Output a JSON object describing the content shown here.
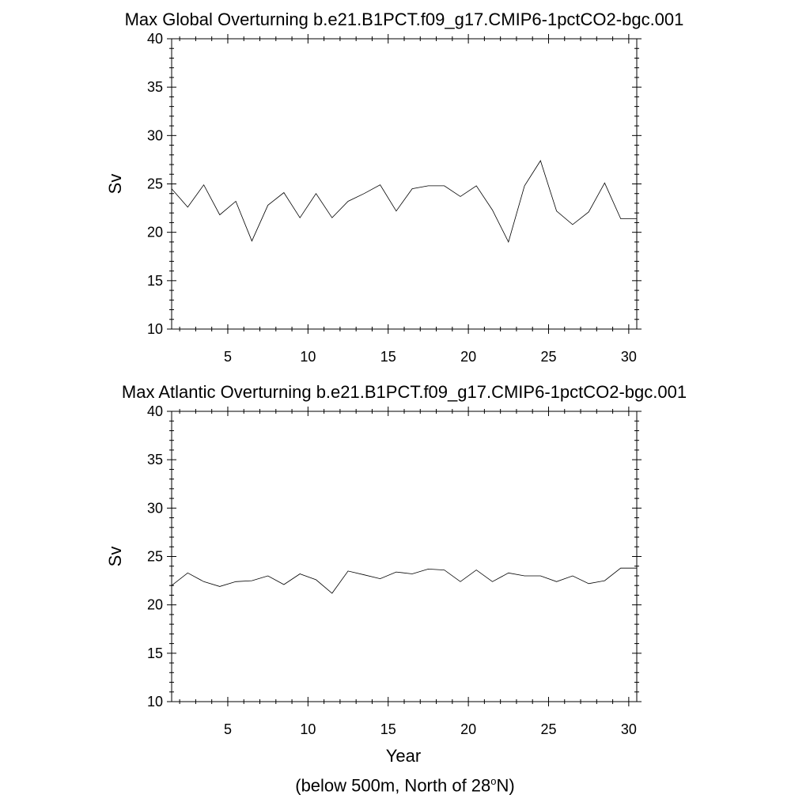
{
  "chart_data": [
    {
      "type": "line",
      "title": "Max Global Overturning b.e21.B1PCT.f09_g17.CMIP6-1pctCO2-bgc.001",
      "xlabel": "",
      "ylabel": "Sv",
      "xlim": [
        1.5,
        30.5
      ],
      "ylim": [
        10,
        40
      ],
      "xticks": [
        "5",
        "10",
        "15",
        "20",
        "25",
        "30"
      ],
      "yticks": [
        "10",
        "15",
        "20",
        "25",
        "30",
        "35",
        "40"
      ],
      "x": [
        1.5,
        2.5,
        3.5,
        4.5,
        5.5,
        6.5,
        7.5,
        8.5,
        9.5,
        10.5,
        11.5,
        12.5,
        13.5,
        14.5,
        15.5,
        16.5,
        17.5,
        18.5,
        19.5,
        20.5,
        21.5,
        22.5,
        23.5,
        24.5,
        25.5,
        26.5,
        27.5,
        28.5,
        29.5,
        30.5
      ],
      "series": [
        {
          "name": "global",
          "values": [
            24.5,
            22.6,
            24.9,
            21.8,
            23.2,
            19.1,
            22.8,
            24.1,
            21.5,
            24.0,
            21.5,
            23.2,
            24.0,
            24.9,
            22.2,
            24.5,
            24.8,
            24.8,
            23.7,
            24.8,
            22.3,
            19.0,
            24.8,
            27.4,
            22.2,
            20.8,
            22.1,
            25.1,
            21.4,
            21.4
          ]
        }
      ]
    },
    {
      "type": "line",
      "title": "Max Atlantic Overturning b.e21.B1PCT.f09_g17.CMIP6-1pctCO2-bgc.001",
      "xlabel": "Year",
      "ylabel": "Sv",
      "xlim": [
        1.5,
        30.5
      ],
      "ylim": [
        10,
        40
      ],
      "xticks": [
        "5",
        "10",
        "15",
        "20",
        "25",
        "30"
      ],
      "yticks": [
        "10",
        "15",
        "20",
        "25",
        "30",
        "35",
        "40"
      ],
      "x": [
        1.5,
        2.5,
        3.5,
        4.5,
        5.5,
        6.5,
        7.5,
        8.5,
        9.5,
        10.5,
        11.5,
        12.5,
        13.5,
        14.5,
        15.5,
        16.5,
        17.5,
        18.5,
        19.5,
        20.5,
        21.5,
        22.5,
        23.5,
        24.5,
        25.5,
        26.5,
        27.5,
        28.5,
        29.5,
        30.5
      ],
      "series": [
        {
          "name": "atlantic",
          "values": [
            22.0,
            23.3,
            22.4,
            21.9,
            22.4,
            22.5,
            23.0,
            22.1,
            23.2,
            22.6,
            21.2,
            23.5,
            23.1,
            22.7,
            23.4,
            23.2,
            23.7,
            23.6,
            22.4,
            23.6,
            22.4,
            23.3,
            23.0,
            23.0,
            22.4,
            23.0,
            22.2,
            22.5,
            23.8,
            23.8
          ]
        }
      ]
    }
  ],
  "footer": {
    "prefix": "(below 500m, North of 28",
    "superscript": "o",
    "suffix": "N)"
  }
}
